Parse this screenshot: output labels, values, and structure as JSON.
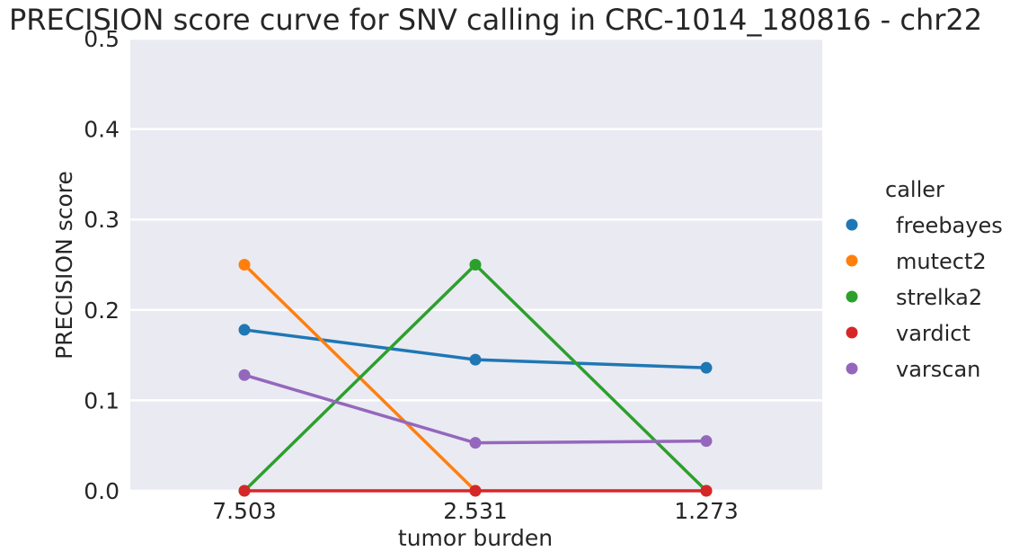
{
  "chart_data": {
    "type": "line",
    "title": "PRECISION score curve for SNV calling in CRC-1014_180816 - chr22",
    "xlabel": "tumor burden",
    "ylabel": "PRECISION score",
    "categories": [
      "7.503",
      "2.531",
      "1.273"
    ],
    "ylim": [
      0,
      0.5
    ],
    "yticks": [
      "0.0",
      "0.1",
      "0.2",
      "0.3",
      "0.4",
      "0.5"
    ],
    "yticks_values": [
      0,
      0.1,
      0.2,
      0.3,
      0.4,
      0.5
    ],
    "grid": true,
    "legend": {
      "title": "caller",
      "placement": "right"
    },
    "series": [
      {
        "name": "freebayes",
        "color": "#1f77b4",
        "values": [
          0.178,
          0.145,
          0.136
        ]
      },
      {
        "name": "mutect2",
        "color": "#ff7f0e",
        "values": [
          0.25,
          0.0,
          null
        ]
      },
      {
        "name": "strelka2",
        "color": "#2ca02c",
        "values": [
          0.0,
          0.25,
          0.0
        ]
      },
      {
        "name": "vardict",
        "color": "#d62728",
        "values": [
          0.0,
          0.0,
          0.0
        ]
      },
      {
        "name": "varscan",
        "color": "#9467bd",
        "values": [
          0.128,
          0.053,
          0.055
        ]
      }
    ]
  }
}
